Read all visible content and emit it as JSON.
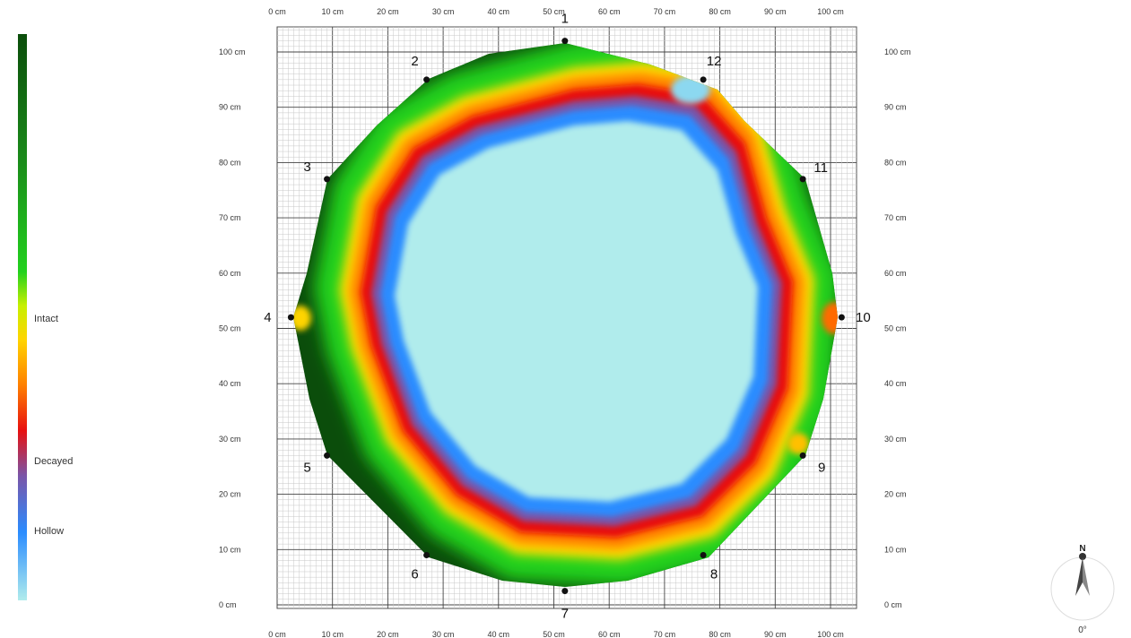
{
  "legend": {
    "levels": [
      {
        "label": "Intact",
        "color": "#22d11e"
      },
      {
        "label": "Decayed",
        "color": "#e81010"
      },
      {
        "label": "Hollow",
        "color": "#2a8cff"
      }
    ],
    "gradient_stops": [
      "#0b4d0b",
      "#1a8a1a",
      "#22d11e",
      "#c7f000",
      "#ffd400",
      "#ff8000",
      "#e81010",
      "#7a55a8",
      "#2a8cff",
      "#b0ecec"
    ]
  },
  "axis": {
    "x_ticks": [
      "0 cm",
      "10 cm",
      "20 cm",
      "30 cm",
      "40 cm",
      "50 cm",
      "60 cm",
      "70 cm",
      "80 cm",
      "90 cm",
      "100 cm"
    ],
    "y_ticks": [
      "0 cm",
      "10 cm",
      "20 cm",
      "30 cm",
      "40 cm",
      "50 cm",
      "60 cm",
      "70 cm",
      "80 cm",
      "90 cm",
      "100 cm"
    ],
    "range_cm": [
      0,
      105
    ]
  },
  "sensors": [
    {
      "label": "1",
      "x": 52,
      "y": 102
    },
    {
      "label": "2",
      "x": 27,
      "y": 95
    },
    {
      "label": "3",
      "x": 9,
      "y": 77
    },
    {
      "label": "4",
      "x": 2.5,
      "y": 52
    },
    {
      "label": "5",
      "x": 9,
      "y": 27
    },
    {
      "label": "6",
      "x": 27,
      "y": 9
    },
    {
      "label": "7",
      "x": 52,
      "y": 2.5
    },
    {
      "label": "8",
      "x": 77,
      "y": 9
    },
    {
      "label": "9",
      "x": 95,
      "y": 27
    },
    {
      "label": "10",
      "x": 102,
      "y": 52
    },
    {
      "label": "11",
      "x": 95,
      "y": 77
    },
    {
      "label": "12",
      "x": 77,
      "y": 95
    }
  ],
  "colors": {
    "intact_dark": "#0b4d0b",
    "intact": "#22d11e",
    "yellow": "#ffe000",
    "decayed": "#e81010",
    "hollow": "#2a8cff",
    "cavity": "#b0ecec",
    "grid_major": "#444444",
    "grid_minor": "#c8c8c8"
  },
  "compass": {
    "north": "N",
    "rotation": "0°"
  }
}
